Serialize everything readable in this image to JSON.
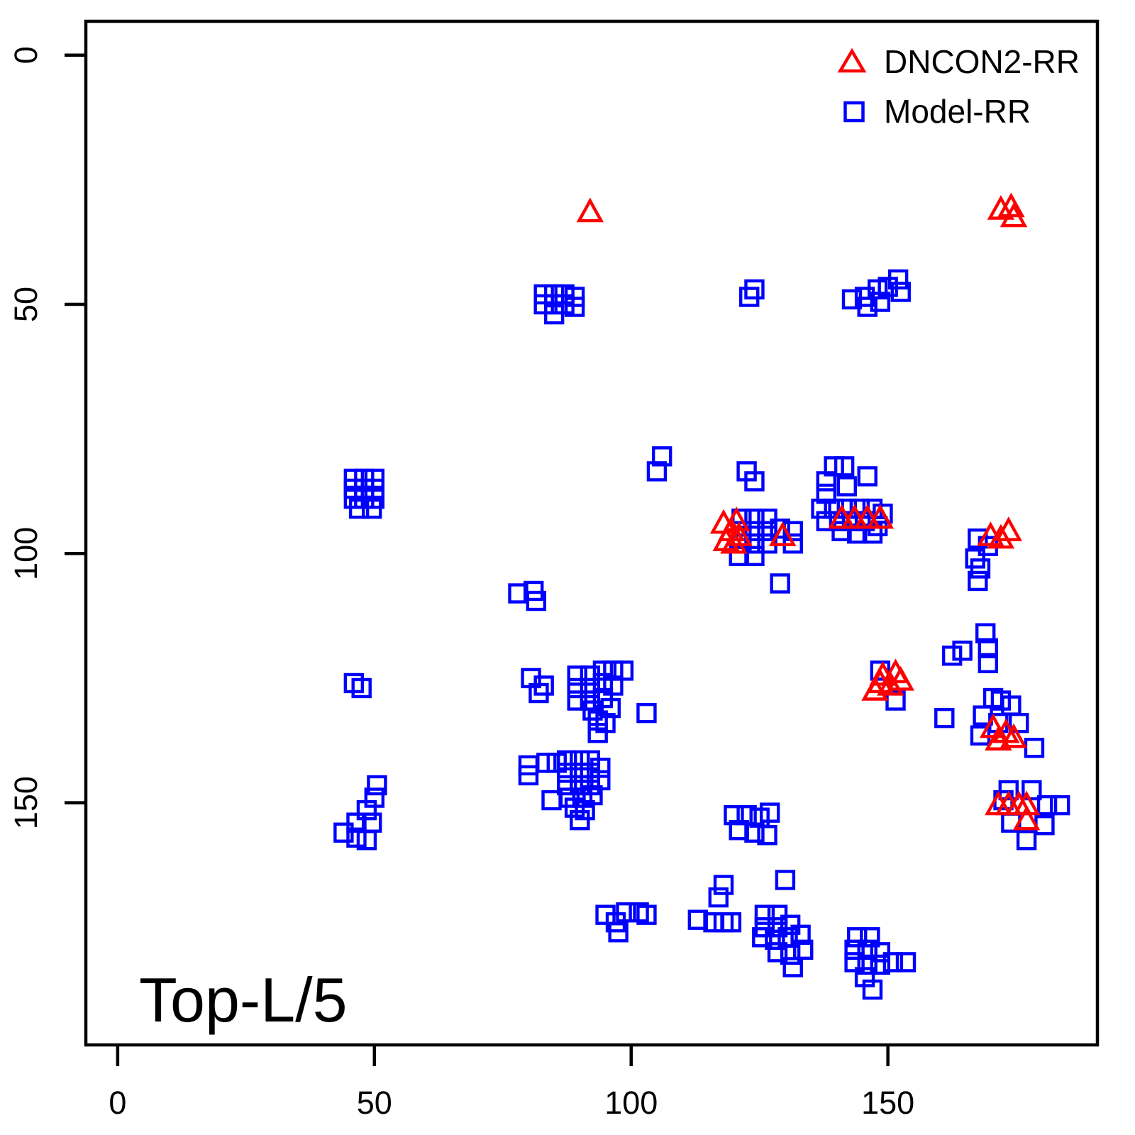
{
  "colors": {
    "dncon2": "#FF0000",
    "model": "#0000FF",
    "axis": "#000000",
    "background": "#FFFFFF"
  },
  "legend": {
    "items": [
      {
        "label": "DNCON2-RR",
        "marker": "triangle-icon",
        "color": "#FF0000"
      },
      {
        "label": "Model-RR",
        "marker": "square-icon",
        "color": "#0000FF"
      }
    ]
  },
  "chart_data": {
    "type": "scatter",
    "title": "Top-L/5",
    "xlabel": "",
    "ylabel": "",
    "x_ticks": [
      0,
      50,
      100,
      150
    ],
    "y_ticks": [
      0,
      50,
      100,
      150
    ],
    "xlim": [
      -6.2,
      190.8
    ],
    "ylim": [
      -6.8,
      198.6
    ],
    "y_axis_inverted": true,
    "grid": false,
    "legend_position": "top-right",
    "series": [
      {
        "name": "Model-RR",
        "marker": "square",
        "color": "#0000FF",
        "points": [
          [
            83,
            48
          ],
          [
            85,
            48
          ],
          [
            87,
            48
          ],
          [
            83,
            50
          ],
          [
            85,
            50
          ],
          [
            87,
            50
          ],
          [
            85,
            52
          ],
          [
            89,
            48.5
          ],
          [
            89,
            50.5
          ],
          [
            124,
            47
          ],
          [
            123,
            48.5
          ],
          [
            143,
            49
          ],
          [
            145.5,
            48.5
          ],
          [
            146,
            50.5
          ],
          [
            148,
            47
          ],
          [
            148.5,
            49.5
          ],
          [
            150,
            46.5
          ],
          [
            152,
            45
          ],
          [
            152.5,
            47.5
          ],
          [
            46,
            85
          ],
          [
            48,
            85
          ],
          [
            50,
            85
          ],
          [
            46,
            87
          ],
          [
            48,
            87
          ],
          [
            50,
            87
          ],
          [
            46,
            89
          ],
          [
            48,
            89
          ],
          [
            50,
            89
          ],
          [
            47,
            91
          ],
          [
            49.5,
            91
          ],
          [
            106,
            80.5
          ],
          [
            105,
            83.5
          ],
          [
            122.5,
            83.5
          ],
          [
            124,
            85.5
          ],
          [
            139.5,
            82.5
          ],
          [
            141.5,
            82.5
          ],
          [
            138,
            85.5
          ],
          [
            142,
            86.5
          ],
          [
            146,
            84.5
          ],
          [
            138,
            88
          ],
          [
            137,
            91
          ],
          [
            139.5,
            91
          ],
          [
            142,
            91
          ],
          [
            144.5,
            91
          ],
          [
            147,
            91
          ],
          [
            149,
            92
          ],
          [
            138,
            93.5
          ],
          [
            140.5,
            93.5
          ],
          [
            143,
            93.5
          ],
          [
            145.5,
            93.5
          ],
          [
            148,
            94.5
          ],
          [
            141,
            95.5
          ],
          [
            144,
            96
          ],
          [
            147,
            96
          ],
          [
            121.5,
            93
          ],
          [
            124,
            93
          ],
          [
            126.5,
            93
          ],
          [
            121.5,
            95.5
          ],
          [
            124,
            95.5
          ],
          [
            126.5,
            95.5
          ],
          [
            129,
            95
          ],
          [
            131.5,
            95.5
          ],
          [
            121.5,
            98
          ],
          [
            124,
            98
          ],
          [
            126.5,
            98
          ],
          [
            131.5,
            98
          ],
          [
            121,
            100.5
          ],
          [
            124,
            100.5
          ],
          [
            167.5,
            97
          ],
          [
            169.5,
            98.5
          ],
          [
            167,
            101
          ],
          [
            168,
            103
          ],
          [
            167.5,
            105.5
          ],
          [
            129,
            106
          ],
          [
            78,
            108
          ],
          [
            81,
            107.5
          ],
          [
            81.5,
            109.5
          ],
          [
            46,
            126
          ],
          [
            47.5,
            127
          ],
          [
            80.5,
            125
          ],
          [
            83,
            126.5
          ],
          [
            82,
            128
          ],
          [
            89.5,
            124.5
          ],
          [
            92,
            124.5
          ],
          [
            94.5,
            123.5
          ],
          [
            96.5,
            123.5
          ],
          [
            98.5,
            123.5
          ],
          [
            89.5,
            127
          ],
          [
            92,
            127
          ],
          [
            94.5,
            126
          ],
          [
            96.5,
            126.5
          ],
          [
            89.5,
            129.5
          ],
          [
            92,
            129.5
          ],
          [
            94.5,
            129
          ],
          [
            96,
            131
          ],
          [
            92.5,
            131.5
          ],
          [
            93.5,
            133.5
          ],
          [
            95,
            134
          ],
          [
            93.5,
            136
          ],
          [
            103,
            132
          ],
          [
            80,
            142.5
          ],
          [
            80,
            144.5
          ],
          [
            83.5,
            142
          ],
          [
            85.5,
            142
          ],
          [
            87.5,
            141.5
          ],
          [
            90,
            141.5
          ],
          [
            92,
            141.5
          ],
          [
            94,
            143
          ],
          [
            87.5,
            144
          ],
          [
            90,
            144
          ],
          [
            92,
            144
          ],
          [
            87.5,
            146.5
          ],
          [
            90,
            146.5
          ],
          [
            92,
            146.5
          ],
          [
            94,
            145.5
          ],
          [
            88,
            149
          ],
          [
            90.5,
            149
          ],
          [
            92.5,
            148.5
          ],
          [
            84.5,
            149.5
          ],
          [
            89,
            151
          ],
          [
            91,
            151.5
          ],
          [
            90,
            153.5
          ],
          [
            50.5,
            146.5
          ],
          [
            50,
            149
          ],
          [
            48.5,
            151.5
          ],
          [
            49.5,
            154
          ],
          [
            46.5,
            154
          ],
          [
            44,
            156
          ],
          [
            46.5,
            157
          ],
          [
            48.5,
            157.5
          ],
          [
            120,
            152.5
          ],
          [
            122.5,
            152.5
          ],
          [
            125,
            153
          ],
          [
            127,
            152
          ],
          [
            121,
            155.5
          ],
          [
            124,
            156
          ],
          [
            126.5,
            156.5
          ],
          [
            118,
            166.5
          ],
          [
            117,
            169
          ],
          [
            130,
            165.5
          ],
          [
            113,
            173.5
          ],
          [
            116,
            174
          ],
          [
            118,
            174
          ],
          [
            119.5,
            174
          ],
          [
            95,
            172.5
          ],
          [
            97,
            174
          ],
          [
            99,
            172
          ],
          [
            101.5,
            172
          ],
          [
            103,
            172.5
          ],
          [
            97.5,
            176
          ],
          [
            126,
            172.5
          ],
          [
            128.5,
            172.5
          ],
          [
            126,
            175
          ],
          [
            128.5,
            175
          ],
          [
            131,
            174.5
          ],
          [
            125.5,
            177
          ],
          [
            128,
            177.5
          ],
          [
            130.5,
            177
          ],
          [
            133,
            176.5
          ],
          [
            128.5,
            180
          ],
          [
            131,
            180.5
          ],
          [
            133.5,
            179.5
          ],
          [
            131.5,
            183
          ],
          [
            144,
            177
          ],
          [
            146.5,
            177
          ],
          [
            143.5,
            179.5
          ],
          [
            146,
            179.5
          ],
          [
            148.5,
            180
          ],
          [
            143.5,
            182
          ],
          [
            146,
            182.5
          ],
          [
            148.5,
            182.5
          ],
          [
            151,
            182
          ],
          [
            153.5,
            182
          ],
          [
            145.5,
            185
          ],
          [
            147,
            187.5
          ],
          [
            162.5,
            120.5
          ],
          [
            164.5,
            119.5
          ],
          [
            169,
            116
          ],
          [
            169.5,
            119
          ],
          [
            169.5,
            122
          ],
          [
            161,
            133
          ],
          [
            148.5,
            123.5
          ],
          [
            151.5,
            129.5
          ],
          [
            170.5,
            129
          ],
          [
            172,
            129.5
          ],
          [
            174,
            130.5
          ],
          [
            168.5,
            132.5
          ],
          [
            175.5,
            134
          ],
          [
            168,
            136.5
          ],
          [
            171.5,
            134
          ],
          [
            178.5,
            139
          ],
          [
            173.5,
            147.5
          ],
          [
            178,
            147.5
          ],
          [
            172.5,
            149.5
          ],
          [
            181,
            150.5
          ],
          [
            183.5,
            150.5
          ],
          [
            174,
            154
          ],
          [
            180.5,
            154.5
          ],
          [
            177,
            157.5
          ]
        ]
      },
      {
        "name": "DNCON2-RR",
        "marker": "triangle",
        "color": "#FF0000",
        "points": [
          [
            92,
            31.5
          ],
          [
            172,
            31
          ],
          [
            174,
            30.5
          ],
          [
            174.5,
            32.5
          ],
          [
            118,
            94
          ],
          [
            119.5,
            95.5
          ],
          [
            120.5,
            93.5
          ],
          [
            121,
            96.5
          ],
          [
            118.5,
            97.5
          ],
          [
            120,
            98
          ],
          [
            129.5,
            96.5
          ],
          [
            141,
            93
          ],
          [
            143.5,
            93
          ],
          [
            146,
            93
          ],
          [
            148.5,
            93
          ],
          [
            170,
            96.5
          ],
          [
            172,
            97
          ],
          [
            173.5,
            95.5
          ],
          [
            149,
            124.5
          ],
          [
            151.5,
            124
          ],
          [
            148.5,
            126
          ],
          [
            150.5,
            126.5
          ],
          [
            147.5,
            127.5
          ],
          [
            152.5,
            125.5
          ],
          [
            170.5,
            135
          ],
          [
            173,
            136
          ],
          [
            171.5,
            137.5
          ],
          [
            174.5,
            137
          ],
          [
            171.5,
            150.5
          ],
          [
            173.5,
            150.5
          ],
          [
            175.5,
            150.5
          ],
          [
            177,
            150.5
          ],
          [
            177,
            153.5
          ]
        ]
      }
    ]
  }
}
